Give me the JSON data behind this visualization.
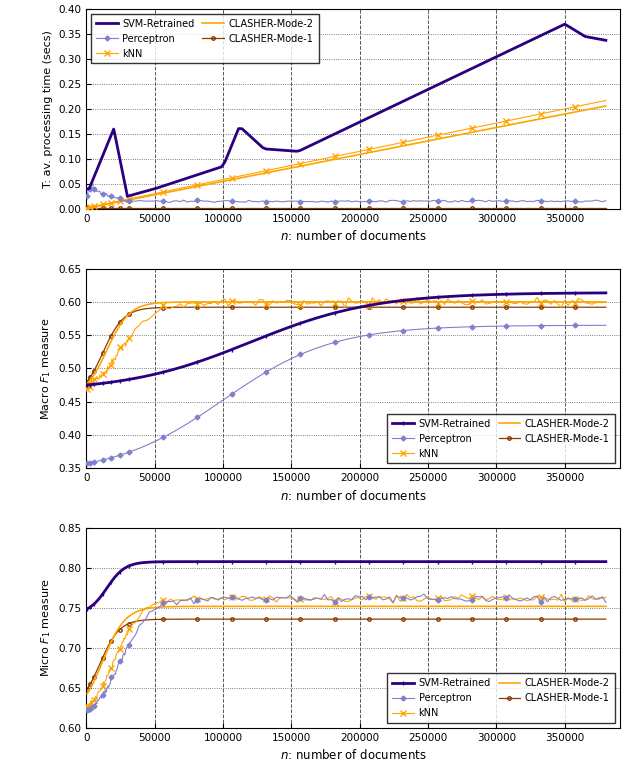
{
  "fig_width": 6.4,
  "fig_height": 7.62,
  "dpi": 100,
  "col_svm": "#2b0080",
  "col_perc": "#8080cc",
  "col_knn": "#ffa500",
  "col_c2": "#ffa500",
  "col_c1": "#8b3a00",
  "xlim": [
    0,
    390000
  ],
  "xticks": [
    0,
    50000,
    100000,
    150000,
    200000,
    250000,
    300000,
    350000
  ],
  "plot1": {
    "ylabel": "T: av. processing time (secs)",
    "xlabel": "n: number of documents",
    "ylim": [
      0.0,
      0.4
    ],
    "yticks": [
      0.0,
      0.05,
      0.1,
      0.15,
      0.2,
      0.25,
      0.3,
      0.35,
      0.4
    ]
  },
  "plot2": {
    "ylabel": "Macro $F_1$ measure",
    "xlabel": "n: number of documents",
    "ylim": [
      0.35,
      0.65
    ],
    "yticks": [
      0.35,
      0.4,
      0.45,
      0.5,
      0.55,
      0.6,
      0.65
    ]
  },
  "plot3": {
    "ylabel": "Micro $F_1$ measure",
    "xlabel": "n: number of documents",
    "ylim": [
      0.6,
      0.85
    ],
    "yticks": [
      0.6,
      0.65,
      0.7,
      0.75,
      0.8,
      0.85
    ]
  }
}
